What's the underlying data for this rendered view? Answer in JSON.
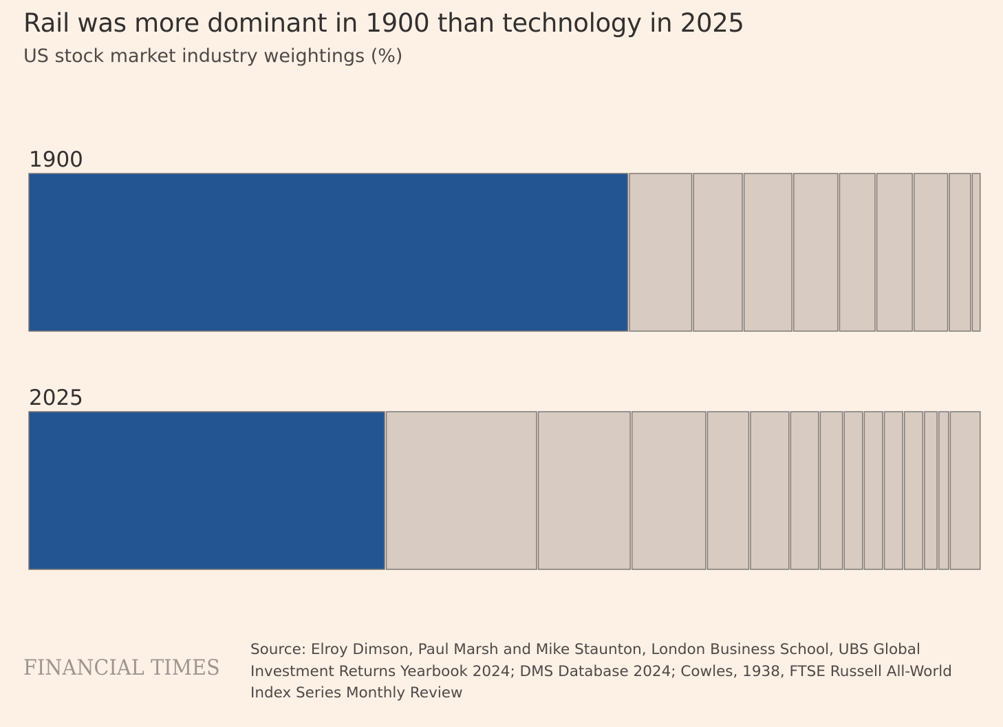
{
  "chart_data": {
    "type": "bar",
    "title": "Rail was more dominant in 1900 than technology in 2025",
    "subtitle": "US stock market industry weightings (%)",
    "layout": "stacked-100-percent",
    "colors": {
      "highlight": "#235593",
      "other": "#d7cbc2",
      "border": "#7f7975"
    },
    "rows": [
      {
        "label": "1900",
        "segments": [
          62.8,
          6.7,
          5.3,
          5.2,
          4.8,
          3.9,
          3.9,
          3.7,
          2.4,
          1.0
        ]
      },
      {
        "label": "2025",
        "segments": [
          37.3,
          15.9,
          9.8,
          7.9,
          4.5,
          4.2,
          3.1,
          2.5,
          2.1,
          2.1,
          2.1,
          2.1,
          1.5,
          1.2,
          3.3
        ]
      }
    ]
  },
  "source": "Source: Elroy Dimson, Paul Marsh and Mike Staunton, London Business School, UBS Global Investment Returns Yearbook 2024; DMS Database 2024; Cowles, 1938, FTSE Russell All-World Index Series Monthly Review",
  "logo": "FINANCIAL TIMES"
}
